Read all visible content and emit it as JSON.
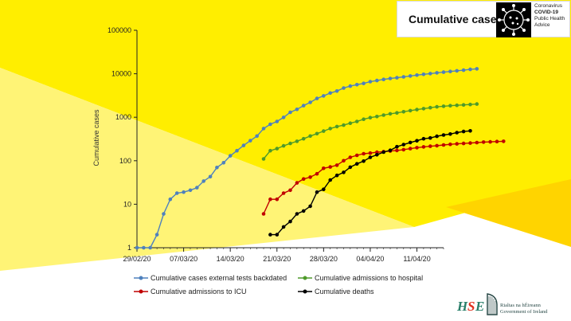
{
  "header": {
    "title": "Cumulative cases",
    "badge_lines": [
      "Coronavirus",
      "COVID-19",
      "Public Health",
      "Advice"
    ]
  },
  "footer": {
    "hse_logo": "HSE",
    "gov_line1": "Rialtas na hÉireann",
    "gov_line2": "Government of Ireland"
  },
  "colors": {
    "yellow_bright": "#ffee00",
    "yellow_light": "#fff476",
    "yellow_dark": "#ffd400",
    "cases": "#4f81bd",
    "hospital": "#4e9a2a",
    "icu": "#c00000",
    "deaths": "#000000"
  },
  "chart_data": {
    "type": "line",
    "title": "",
    "ylabel": "Cumulative cases",
    "xlabel": "",
    "yscale": "log",
    "ylim": [
      1,
      100000
    ],
    "y_ticks": [
      "1",
      "10",
      "100",
      "1000",
      "10000",
      "100000"
    ],
    "x_range": [
      "2020-02-29",
      "2020-04-15"
    ],
    "x_ticks": [
      "29/02/20",
      "07/03/20",
      "14/03/20",
      "21/03/20",
      "28/03/20",
      "04/04/20",
      "11/04/20"
    ],
    "legend_position": "bottom",
    "series": [
      {
        "name": "Cumulative cases external tests backdated",
        "color": "#4f81bd",
        "start": "2020-02-29",
        "values": [
          1,
          1,
          1,
          2,
          6,
          13,
          18,
          19,
          21,
          24,
          34,
          43,
          70,
          90,
          130,
          170,
          225,
          290,
          370,
          550,
          690,
          800,
          990,
          1300,
          1520,
          1850,
          2200,
          2700,
          3100,
          3600,
          4000,
          4700,
          5200,
          5600,
          6000,
          6600,
          7000,
          7400,
          7800,
          8100,
          8500,
          8900,
          9300,
          9700,
          10100,
          10500,
          10900,
          11300,
          11700,
          12100,
          12600,
          13000
        ],
        "note_step": "daily"
      },
      {
        "name": "Cumulative admissions to hospital",
        "color": "#4e9a2a",
        "start": "2020-03-19",
        "values": [
          110,
          170,
          190,
          220,
          250,
          280,
          320,
          370,
          420,
          480,
          550,
          610,
          660,
          730,
          800,
          900,
          980,
          1040,
          1120,
          1200,
          1260,
          1340,
          1420,
          1500,
          1580,
          1660,
          1740,
          1790,
          1840,
          1880,
          1920,
          1960,
          2010
        ]
      },
      {
        "name": "Cumulative admissions to ICU",
        "color": "#c00000",
        "start": "2020-03-19",
        "values": [
          6,
          13,
          13,
          18,
          21,
          31,
          38,
          42,
          50,
          67,
          72,
          79,
          100,
          120,
          133,
          145,
          150,
          157,
          162,
          167,
          172,
          180,
          190,
          200,
          208,
          215,
          222,
          230,
          238,
          245,
          250,
          255,
          262,
          268,
          272,
          276,
          280
        ]
      },
      {
        "name": "Cumulative deaths",
        "color": "#000000",
        "start": "2020-03-20",
        "values": [
          2,
          2,
          3,
          4,
          6,
          7,
          9,
          19,
          22,
          36,
          46,
          54,
          71,
          85,
          98,
          120,
          137,
          158,
          174,
          210,
          235,
          263,
          288,
          320,
          334,
          365,
          390,
          410,
          444,
          470,
          486
        ]
      }
    ]
  }
}
